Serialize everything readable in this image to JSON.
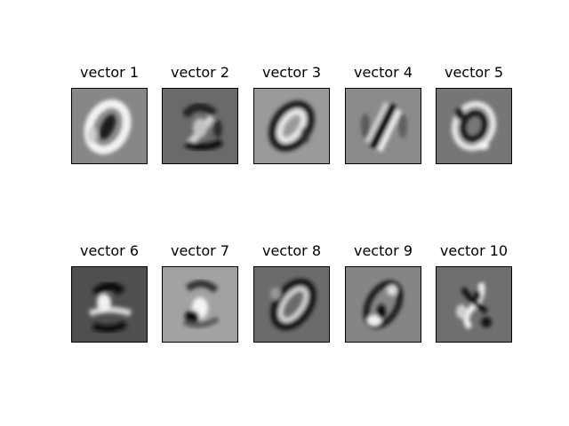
{
  "panels": [
    {
      "title": "vector 1",
      "background": "#878787",
      "digit": "0"
    },
    {
      "title": "vector 2",
      "background": "#6a6a6a",
      "digit": "2"
    },
    {
      "title": "vector 3",
      "background": "#9a9a9a",
      "digit": "0"
    },
    {
      "title": "vector 4",
      "background": "#8b8b8b",
      "digit": "1"
    },
    {
      "title": "vector 5",
      "background": "#767676",
      "digit": "0"
    },
    {
      "title": "vector 6",
      "background": "#4f4f4f",
      "digit": "2"
    },
    {
      "title": "vector 7",
      "background": "#a2a2a2",
      "digit": "2"
    },
    {
      "title": "vector 8",
      "background": "#6b6b6b",
      "digit": "0"
    },
    {
      "title": "vector 9",
      "background": "#858585",
      "digit": "0"
    },
    {
      "title": "vector 10",
      "background": "#6f6f6f",
      "digit": "2"
    }
  ]
}
